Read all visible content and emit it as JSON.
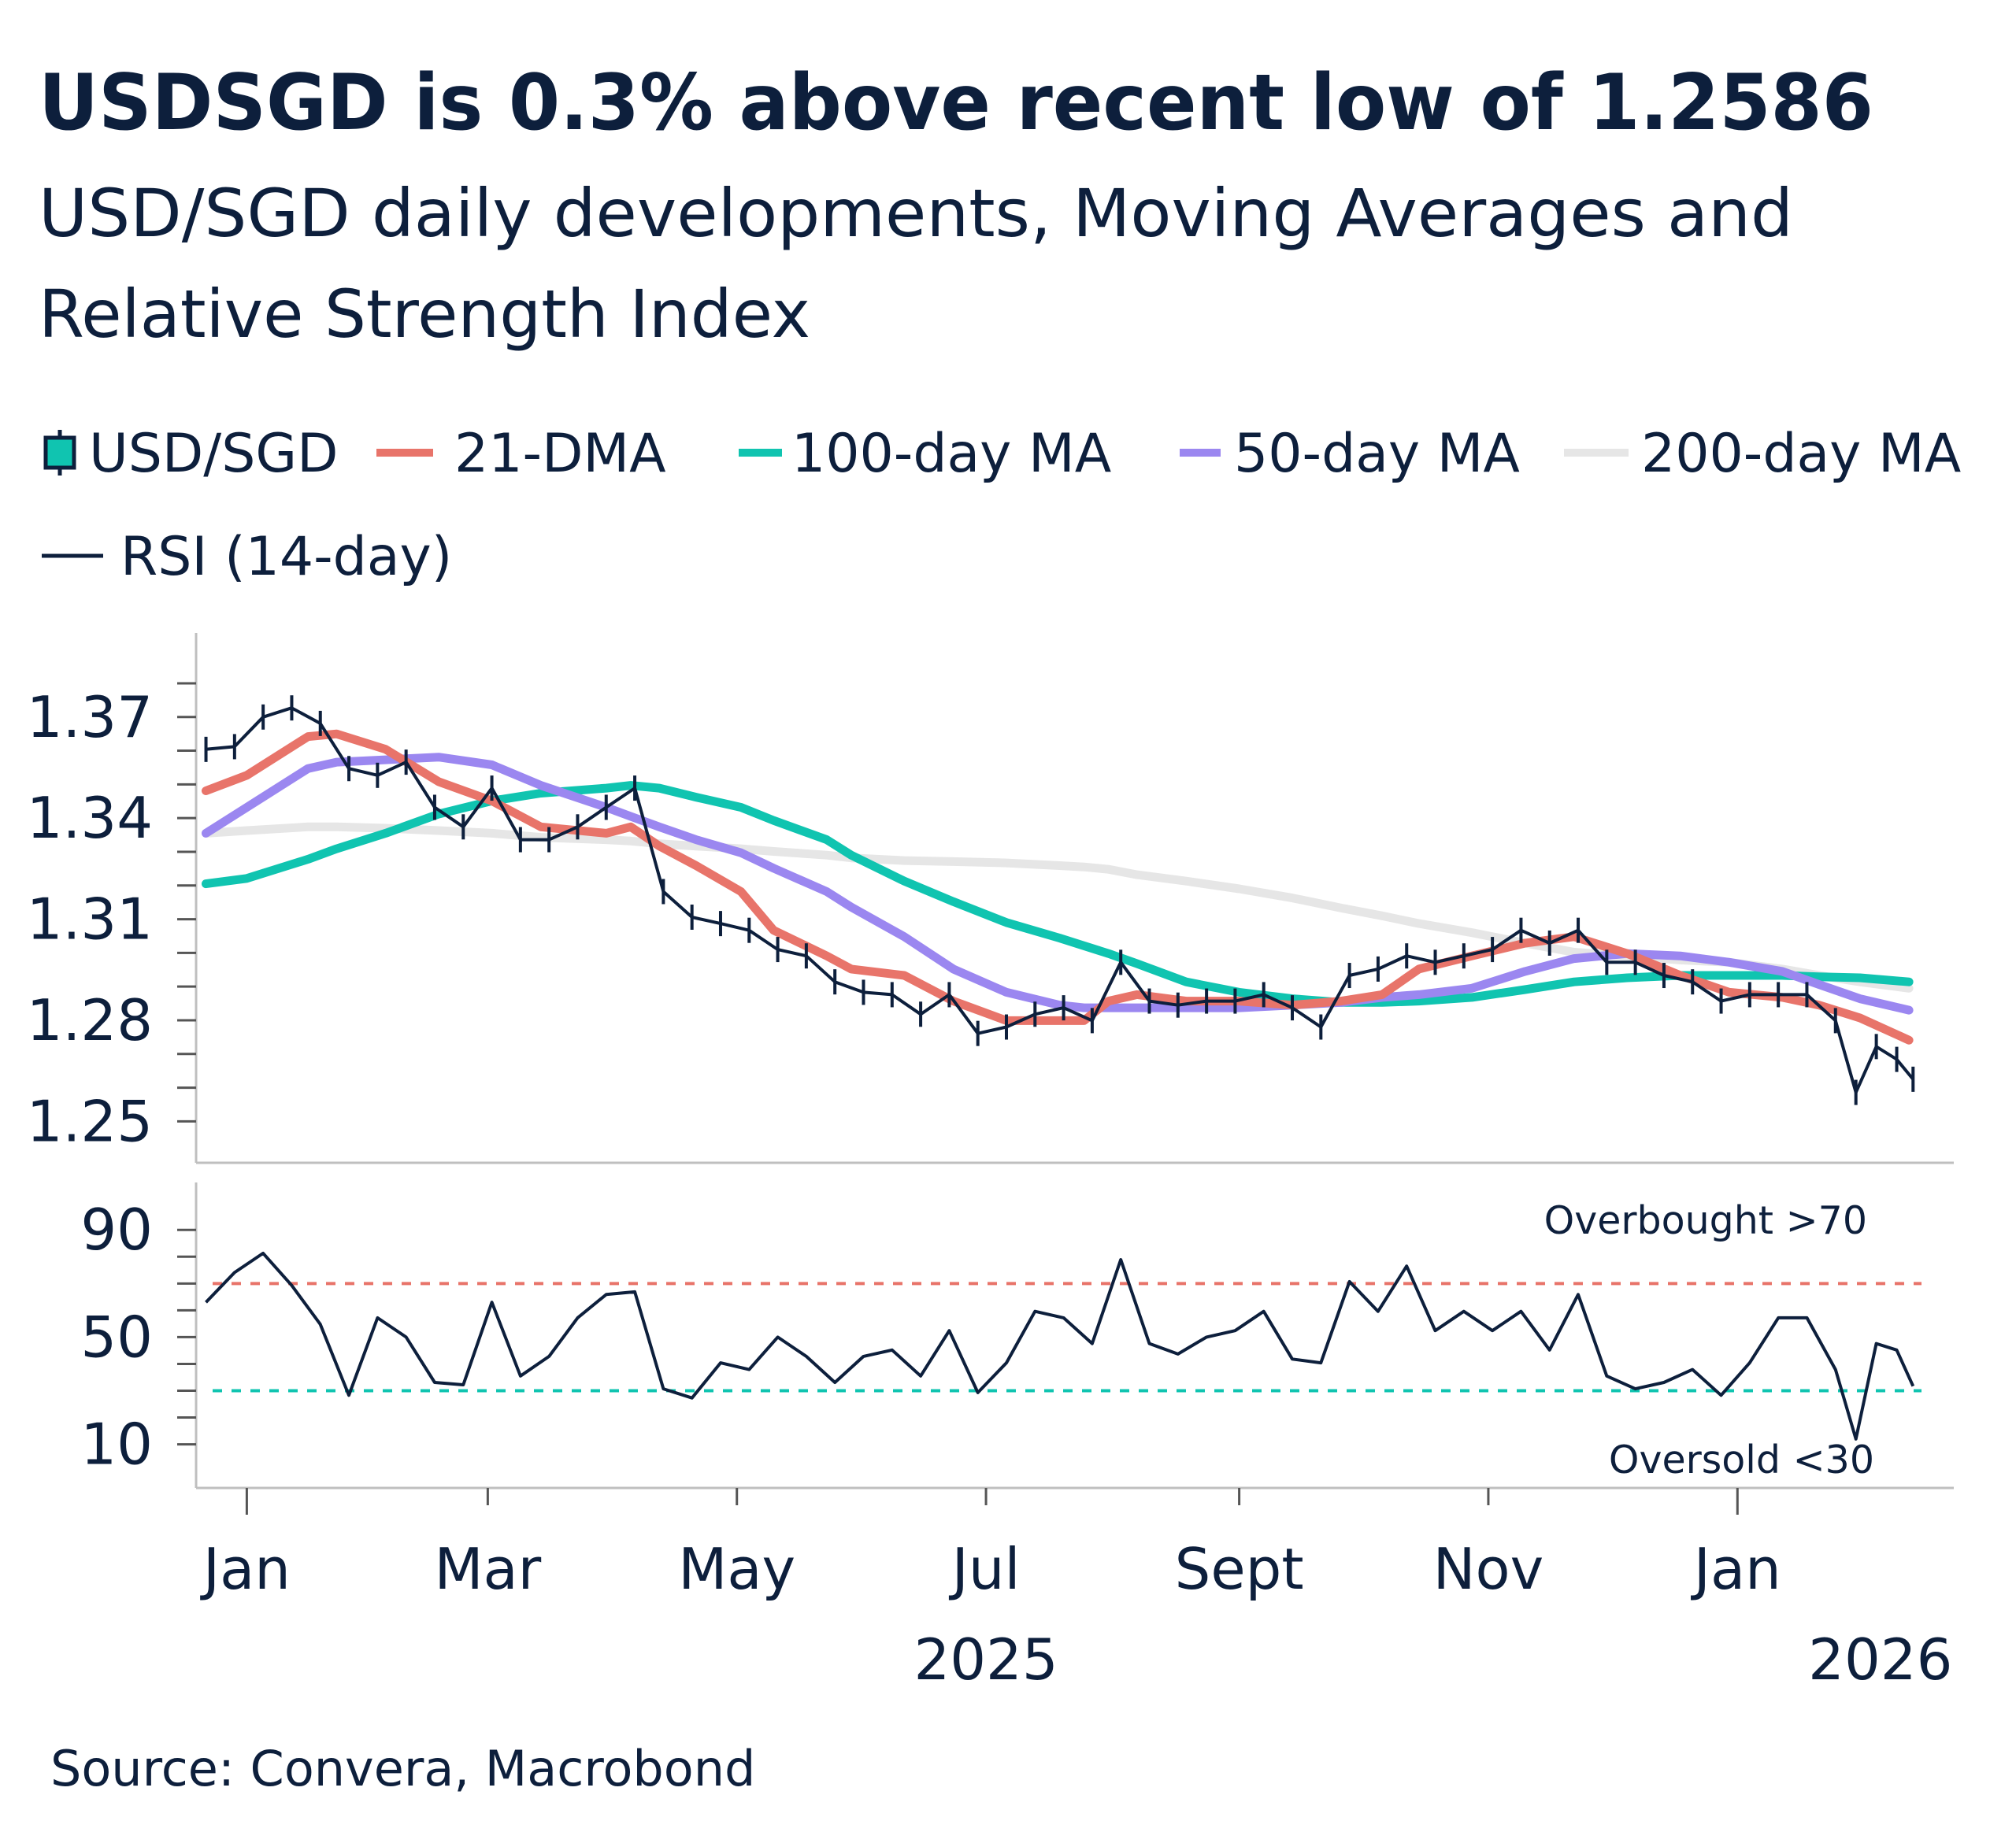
{
  "title": "USDSGD is 0.3% above recent low of 1.2586",
  "subtitle_line1": "USD/SGD daily developments, Moving Averages and",
  "subtitle_line2": "Relative Strength Index",
  "source": "Source: Convera, Macrobond",
  "colors": {
    "text": "#0d1f3c",
    "usdsgd": "#0d1f3c",
    "dma21": "#e8746a",
    "ma100": "#10c4b0",
    "ma50": "#9b87f0",
    "ma200": "#e6e6e6",
    "rsi": "#0d1f3c",
    "overbought": "#e8746a",
    "oversold": "#10c4b0"
  },
  "legend": [
    {
      "label": "USD/SGD",
      "icon": "ohlc-bar-icon"
    },
    {
      "label": "21-DMA",
      "icon": "line-icon"
    },
    {
      "label": "100-day MA",
      "icon": "line-icon"
    },
    {
      "label": "50-day MA",
      "icon": "line-icon"
    },
    {
      "label": "200-day MA",
      "icon": "line-icon"
    },
    {
      "label": "RSI (14-day)",
      "icon": "line-icon"
    }
  ],
  "chart_data": [
    {
      "type": "line",
      "panel": "price",
      "ylim": [
        1.245,
        1.385
      ],
      "yticks": [
        "1.25",
        "1.28",
        "1.31",
        "1.34",
        "1.37"
      ],
      "xticks": [
        "Jan",
        "Mar",
        "May",
        "Jul",
        "Sept",
        "Nov",
        "Jan"
      ],
      "xtick_dates": [
        "2025-01-01",
        "2025-03-01",
        "2025-05-01",
        "2025-07-01",
        "2025-09-01",
        "2025-11-01",
        "2026-01-01"
      ],
      "year_labels": [
        {
          "label": "2025",
          "date": "2025-07-01"
        },
        {
          "label": "2026",
          "date": "2026-02-05"
        }
      ],
      "grid": false,
      "legend_placement": "top",
      "series_price": {
        "name": "USD/SGD",
        "x": [
          "2024-12-22",
          "2024-12-29",
          "2025-01-05",
          "2025-01-12",
          "2025-01-19",
          "2025-01-26",
          "2025-02-02",
          "2025-02-09",
          "2025-02-16",
          "2025-02-23",
          "2025-03-02",
          "2025-03-09",
          "2025-03-16",
          "2025-03-23",
          "2025-03-30",
          "2025-04-06",
          "2025-04-13",
          "2025-04-20",
          "2025-04-27",
          "2025-05-04",
          "2025-05-11",
          "2025-05-18",
          "2025-05-25",
          "2025-06-01",
          "2025-06-08",
          "2025-06-15",
          "2025-06-22",
          "2025-06-29",
          "2025-07-06",
          "2025-07-13",
          "2025-07-20",
          "2025-07-27",
          "2025-08-03",
          "2025-08-10",
          "2025-08-17",
          "2025-08-24",
          "2025-08-31",
          "2025-09-07",
          "2025-09-14",
          "2025-09-21",
          "2025-09-28",
          "2025-10-05",
          "2025-10-12",
          "2025-10-19",
          "2025-10-26",
          "2025-11-02",
          "2025-11-09",
          "2025-11-16",
          "2025-11-23",
          "2025-11-30",
          "2025-12-07",
          "2025-12-14",
          "2025-12-21",
          "2025-12-28",
          "2026-01-04",
          "2026-01-11",
          "2026-01-18",
          "2026-01-25",
          "2026-01-30",
          "2026-02-04",
          "2026-02-09",
          "2026-02-13"
        ],
        "values": [
          1.3604,
          1.3612,
          1.37,
          1.3727,
          1.3681,
          1.3547,
          1.3527,
          1.3566,
          1.3432,
          1.3374,
          1.3489,
          1.3336,
          1.3336,
          1.3374,
          1.3432,
          1.3489,
          1.3182,
          1.3106,
          1.3087,
          1.3067,
          1.301,
          1.2991,
          1.2914,
          1.2883,
          1.2876,
          1.2818,
          1.2876,
          1.2761,
          1.278,
          1.2818,
          1.2837,
          1.2799,
          1.2972,
          1.2857,
          1.2845,
          1.2857,
          1.2857,
          1.2876,
          1.2837,
          1.278,
          1.2933,
          1.2952,
          1.2991,
          1.2972,
          1.2991,
          1.301,
          1.3067,
          1.3029,
          1.3067,
          1.2972,
          1.2972,
          1.2933,
          1.2914,
          1.2857,
          1.2876,
          1.2876,
          1.2876,
          1.2799,
          1.2586,
          1.2722,
          1.2684,
          1.2625
        ]
      },
      "ma_x": [
        "2024-12-22",
        "2025-01-01",
        "2025-01-16",
        "2025-01-23",
        "2025-02-04",
        "2025-02-17",
        "2025-03-02",
        "2025-03-14",
        "2025-03-30",
        "2025-04-05",
        "2025-04-12",
        "2025-04-21",
        "2025-05-02",
        "2025-05-10",
        "2025-05-23",
        "2025-05-29",
        "2025-06-11",
        "2025-06-23",
        "2025-07-06",
        "2025-07-19",
        "2025-07-25",
        "2025-07-31",
        "2025-08-07",
        "2025-08-19",
        "2025-09-01",
        "2025-09-14",
        "2025-09-26",
        "2025-10-06",
        "2025-10-15",
        "2025-10-28",
        "2025-11-10",
        "2025-11-22",
        "2025-12-05",
        "2025-12-18",
        "2025-12-30",
        "2026-01-12",
        "2026-01-21",
        "2026-01-31",
        "2026-02-12"
      ],
      "series": [
        {
          "name": "200-day MA",
          "key": "ma200",
          "values": [
            1.3355,
            1.3363,
            1.3374,
            1.3374,
            1.337,
            1.3363,
            1.3355,
            1.3343,
            1.3336,
            1.3332,
            1.3324,
            1.3317,
            1.3309,
            1.3301,
            1.329,
            1.3282,
            1.3274,
            1.3271,
            1.3267,
            1.3259,
            1.3255,
            1.3248,
            1.3232,
            1.3213,
            1.319,
            1.3163,
            1.3133,
            1.311,
            1.3087,
            1.306,
            1.3029,
            1.3002,
            1.2991,
            1.2979,
            1.2972,
            1.2952,
            1.2933,
            1.2914,
            1.2895
          ]
        },
        {
          "name": "100-day MA",
          "key": "ma100",
          "values": [
            1.3205,
            1.3221,
            1.3278,
            1.3309,
            1.3355,
            1.3412,
            1.3451,
            1.3474,
            1.3489,
            1.3497,
            1.3489,
            1.3462,
            1.3432,
            1.3393,
            1.3336,
            1.329,
            1.3213,
            1.3152,
            1.309,
            1.3044,
            1.3021,
            1.2998,
            1.2968,
            1.2914,
            1.2883,
            1.2864,
            1.2853,
            1.2853,
            1.2857,
            1.2868,
            1.2891,
            1.2914,
            1.2926,
            1.2933,
            1.2933,
            1.2933,
            1.2929,
            1.2926,
            1.2914
          ]
        },
        {
          "name": "50-day MA",
          "key": "ma50",
          "values": [
            1.3355,
            1.3432,
            1.3547,
            1.3566,
            1.3573,
            1.3581,
            1.3558,
            1.3497,
            1.3432,
            1.3405,
            1.3374,
            1.3336,
            1.3297,
            1.3251,
            1.3182,
            1.3136,
            1.3048,
            1.2952,
            1.2883,
            1.2845,
            1.2837,
            1.2837,
            1.2837,
            1.2837,
            1.2837,
            1.2845,
            1.2853,
            1.2868,
            1.2876,
            1.2895,
            1.2945,
            1.2983,
            1.2998,
            1.2991,
            1.2972,
            1.2945,
            1.2906,
            1.2864,
            1.283
          ]
        },
        {
          "name": "21-DMA",
          "key": "dma21",
          "values": [
            1.3481,
            1.3527,
            1.3642,
            1.365,
            1.3604,
            1.3508,
            1.3451,
            1.3374,
            1.3355,
            1.3374,
            1.3317,
            1.3259,
            1.3182,
            1.3067,
            1.2991,
            1.2952,
            1.2933,
            1.2857,
            1.2799,
            1.2799,
            1.2799,
            1.2857,
            1.2876,
            1.2857,
            1.2857,
            1.2845,
            1.2857,
            1.2876,
            1.2952,
            1.2991,
            1.3029,
            1.3048,
            1.2998,
            1.2933,
            1.2883,
            1.2868,
            1.2845,
            1.2807,
            1.2741
          ]
        }
      ]
    },
    {
      "type": "line",
      "panel": "rsi",
      "name": "RSI (14-day)",
      "ylim": [
        0,
        105
      ],
      "yticks": [
        "10",
        "50",
        "90"
      ],
      "overbought_level": 70,
      "oversold_level": 30,
      "overbought_label": "Overbought >70",
      "oversold_label": "Oversold <30",
      "values": [
        63.0,
        74.1,
        81.3,
        69.3,
        54.8,
        28.3,
        57.2,
        50.0,
        33.1,
        32.2,
        63.0,
        35.5,
        42.8,
        57.2,
        65.9,
        66.9,
        30.7,
        27.3,
        40.4,
        37.9,
        50.0,
        42.8,
        33.1,
        42.8,
        45.2,
        35.5,
        52.4,
        29.3,
        40.4,
        59.6,
        57.2,
        47.6,
        78.9,
        47.6,
        43.7,
        50.0,
        52.4,
        59.6,
        41.8,
        40.4,
        70.7,
        59.6,
        76.5,
        52.4,
        59.6,
        52.4,
        59.6,
        45.2,
        65.9,
        35.5,
        30.7,
        33.1,
        37.9,
        28.3,
        40.4,
        57.2,
        57.2,
        37.9,
        12.0,
        47.6,
        45.2,
        31.7
      ]
    }
  ]
}
